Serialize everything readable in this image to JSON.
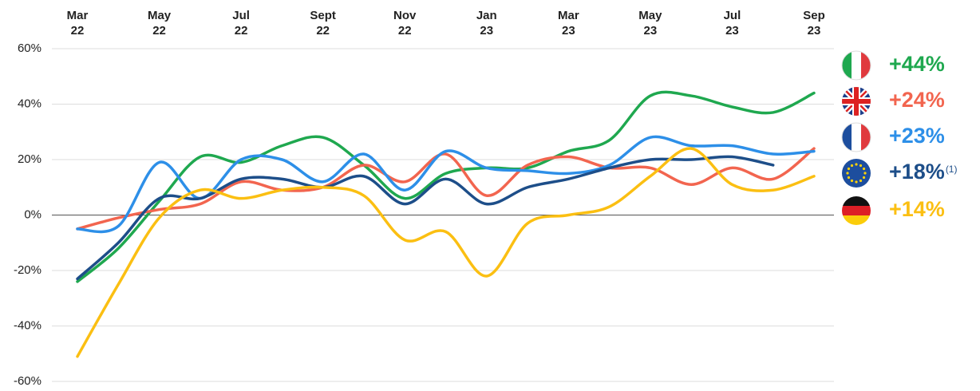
{
  "chart_data": {
    "type": "line",
    "categories": [
      "Mar 22",
      null,
      "May 22",
      null,
      "Jul 22",
      null,
      "Sept 22",
      null,
      "Nov 22",
      null,
      "Jan 23",
      null,
      "Mar 23",
      null,
      "May 23",
      null,
      "Jul 23",
      null,
      "Sep 23"
    ],
    "ylim": [
      -60,
      60
    ],
    "yticks": [
      {
        "value": 60,
        "label": "60%"
      },
      {
        "value": 40,
        "label": "40%"
      },
      {
        "value": 20,
        "label": "20%"
      },
      {
        "value": 0,
        "label": "0%"
      },
      {
        "value": -20,
        "label": "-20%"
      },
      {
        "value": -40,
        "label": "-40%"
      },
      {
        "value": -60,
        "label": "-60%"
      }
    ],
    "grid": true,
    "series": [
      {
        "label": "+44%",
        "color": "#1fa84f",
        "values": [
          -24,
          -12,
          5,
          21,
          19,
          25,
          28,
          18,
          6,
          15,
          17,
          17,
          23,
          27,
          43,
          43,
          39,
          37,
          44
        ]
      },
      {
        "label": "+24%",
        "color": "#f2654f",
        "values": [
          -5,
          -1,
          2,
          4,
          12,
          9,
          10,
          18,
          12,
          22,
          7,
          18,
          21,
          17,
          17,
          11,
          17,
          13,
          24
        ]
      },
      {
        "label": "+23%",
        "color": "#2d8fe8",
        "values": [
          -5,
          -4,
          19,
          6,
          20,
          20,
          12,
          22,
          9,
          23,
          17,
          16,
          15,
          18,
          28,
          25,
          25,
          22,
          23
        ]
      },
      {
        "label": "+18%",
        "note": "(1)",
        "color": "#1d4e89",
        "values": [
          -23,
          -10,
          6,
          6,
          13,
          13,
          10,
          14,
          4,
          13,
          4,
          10,
          13,
          17,
          20,
          20,
          21,
          18,
          null
        ]
      },
      {
        "label": "+14%",
        "color": "#fbbf12",
        "values": [
          -51,
          -25,
          -1,
          9,
          6,
          9,
          10,
          7,
          -9,
          -6,
          -22,
          -3,
          0,
          3,
          14,
          24,
          11,
          9,
          14
        ]
      }
    ]
  }
}
